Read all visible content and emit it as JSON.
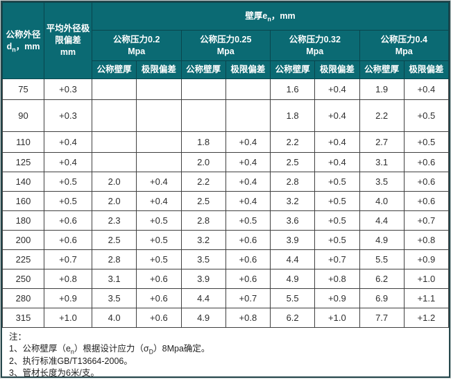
{
  "colors": {
    "header_bg": "#0b6a73",
    "header_border": "#09454d",
    "outer_border": "#24464b",
    "body_border": "#3f3f3f",
    "header_text": "#ffffff",
    "body_text": "#2d2d2d"
  },
  "table": {
    "header": {
      "outer_diameter": {
        "line1": "公称外径",
        "symbol": "d",
        "symbol_sub": "n",
        "unit_suffix": "，mm"
      },
      "mean_od_deviation": {
        "line1": "平均外径极限偏差",
        "line2": "mm"
      },
      "wall_thickness": {
        "pre": "壁厚e",
        "sub": "n",
        "post": "，mm"
      },
      "pressure_groups": [
        {
          "label": "公称压力0.2",
          "unit": "Mpa"
        },
        {
          "label": "公称压力0.25",
          "unit": "Mpa"
        },
        {
          "label": "公称压力0.32",
          "unit": "Mpa"
        },
        {
          "label": "公称压力0.4",
          "unit": "Mpa"
        }
      ],
      "sub_wall": "公称壁厚",
      "sub_dev": "极限偏差"
    },
    "rows": [
      [
        "75",
        "+0.3",
        "",
        "",
        "",
        "",
        "1.6",
        "+0.4",
        "1.9",
        "+0.4"
      ],
      [
        "90",
        "+0.3",
        "",
        "",
        "",
        "",
        "1.8",
        "+0.4",
        "2.2",
        "+0.5"
      ],
      [
        "110",
        "+0.4",
        "",
        "",
        "1.8",
        "+0.4",
        "2.2",
        "+0.4",
        "2.7",
        "+0.5"
      ],
      [
        "125",
        "+0.4",
        "",
        "",
        "2.0",
        "+0.4",
        "2.5",
        "+0.4",
        "3.1",
        "+0.6"
      ],
      [
        "140",
        "+0.5",
        "2.0",
        "+0.4",
        "2.2",
        "+0.4",
        "2.8",
        "+0.5",
        "3.5",
        "+0.6"
      ],
      [
        "160",
        "+0.5",
        "2.0",
        "+0.4",
        "2.5",
        "+0.4",
        "3.2",
        "+0.5",
        "4.0",
        "+0.6"
      ],
      [
        "180",
        "+0.6",
        "2.3",
        "+0.5",
        "2.8",
        "+0.5",
        "3.6",
        "+0.5",
        "4.4",
        "+0.7"
      ],
      [
        "200",
        "+0.6",
        "2.5",
        "+0.5",
        "3.2",
        "+0.6",
        "3.9",
        "+0.5",
        "4.9",
        "+0.8"
      ],
      [
        "225",
        "+0.7",
        "2.8",
        "+0.5",
        "3.5",
        "+0.6",
        "4.4",
        "+0.7",
        "5.5",
        "+0.9"
      ],
      [
        "250",
        "+0.8",
        "3.1",
        "+0.6",
        "3.9",
        "+0.6",
        "4.9",
        "+0.8",
        "6.2",
        "+1.0"
      ],
      [
        "280",
        "+0.9",
        "3.5",
        "+0.6",
        "4.4",
        "+0.7",
        "5.5",
        "+0.9",
        "6.9",
        "+1.1"
      ],
      [
        "315",
        "+1.0",
        "4.0",
        "+0.6",
        "4.9",
        "+0.8",
        "6.2",
        "+1.0",
        "7.7",
        "+1.2"
      ]
    ]
  },
  "notes": {
    "title": "注：",
    "note1": {
      "a": "1、公称壁厚（e",
      "a_sub": "n",
      "b": "）根据设计应力（σ",
      "b_sub": "D",
      "c": "）8Mpa确定。"
    },
    "note2": "2、执行标准GB/T13664-2006。",
    "note3": "3、管材长度为6米/支。"
  }
}
